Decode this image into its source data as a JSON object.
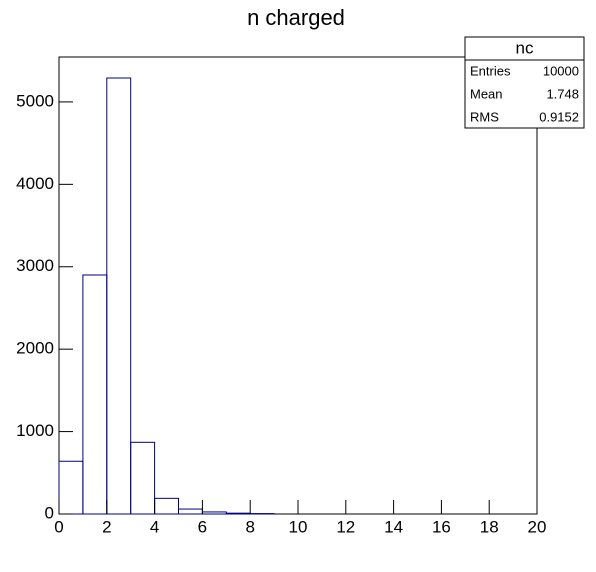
{
  "chart_data": {
    "type": "histogram",
    "title": "n charged",
    "bins": [
      0,
      1,
      2,
      3,
      4,
      5,
      6,
      7,
      8,
      9,
      10,
      11,
      12,
      13,
      14,
      15,
      16,
      17,
      18,
      19,
      20
    ],
    "values": [
      640,
      2900,
      5290,
      870,
      190,
      60,
      25,
      10,
      5,
      0,
      0,
      0,
      0,
      0,
      0,
      0,
      0,
      0,
      0,
      0
    ],
    "color": "#000080",
    "xlim": [
      0,
      20
    ],
    "xticks": [
      0,
      2,
      4,
      6,
      8,
      10,
      12,
      14,
      16,
      18,
      20
    ],
    "ylim": [
      0,
      5545
    ],
    "yticks": [
      0,
      1000,
      2000,
      3000,
      4000,
      5000
    ],
    "stats": {
      "title": "nc",
      "rows": [
        [
          "Entries",
          "10000"
        ],
        [
          "Mean",
          "1.748"
        ],
        [
          "RMS",
          "0.9152"
        ]
      ]
    }
  }
}
